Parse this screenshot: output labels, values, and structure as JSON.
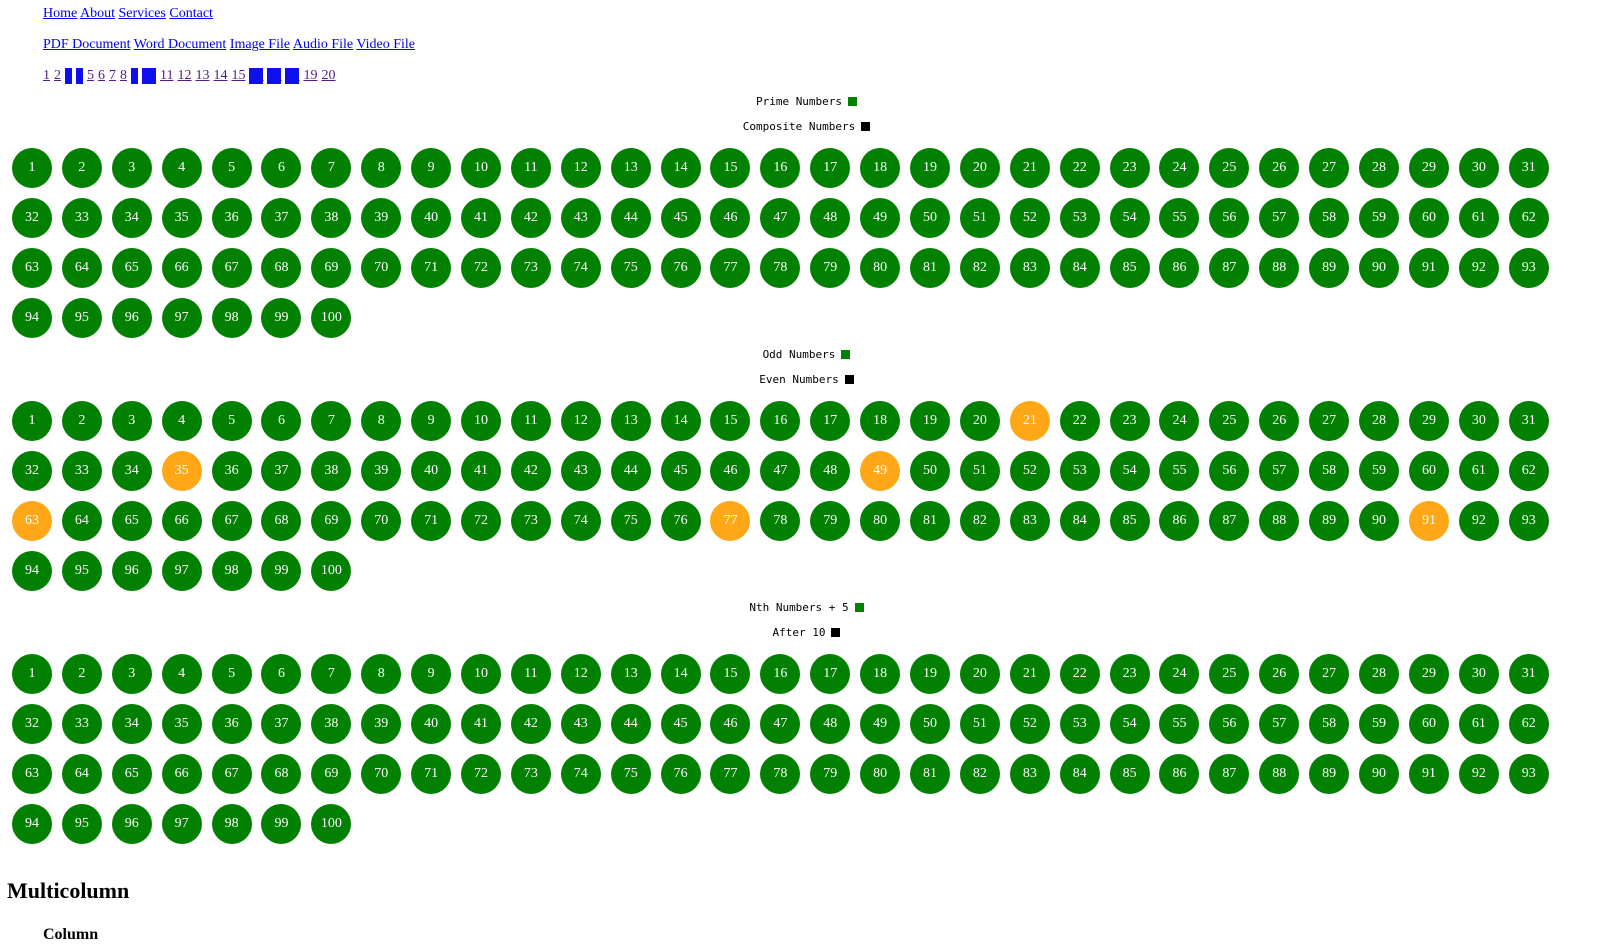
{
  "nav": {
    "main_links": [
      "Home",
      "About",
      "Services",
      "Contact"
    ],
    "file_links": [
      "PDF Document",
      "Word Document",
      "Image File",
      "Audio File",
      "Video File"
    ],
    "pages": [
      {
        "label": "1",
        "highlighted": false
      },
      {
        "label": "2",
        "highlighted": false
      },
      {
        "label": "3",
        "highlighted": true
      },
      {
        "label": "4",
        "highlighted": true
      },
      {
        "label": "5",
        "highlighted": false
      },
      {
        "label": "6",
        "highlighted": false
      },
      {
        "label": "7",
        "highlighted": false
      },
      {
        "label": "8",
        "highlighted": false
      },
      {
        "label": "9",
        "highlighted": true
      },
      {
        "label": "10",
        "highlighted": true
      },
      {
        "label": "11",
        "highlighted": false
      },
      {
        "label": "12",
        "highlighted": false
      },
      {
        "label": "13",
        "highlighted": false
      },
      {
        "label": "14",
        "highlighted": false
      },
      {
        "label": "15",
        "highlighted": false
      },
      {
        "label": "16",
        "highlighted": true
      },
      {
        "label": "17",
        "highlighted": true
      },
      {
        "label": "18",
        "highlighted": true
      },
      {
        "label": "19",
        "highlighted": false
      },
      {
        "label": "20",
        "highlighted": false
      }
    ]
  },
  "colors": {
    "ball_default": "#018001",
    "ball_highlight": "#ffa716",
    "legend_green": "#018001",
    "legend_black": "#000000"
  },
  "sections": [
    {
      "legend_primary": "Prime Numbers",
      "legend_secondary": "Composite Numbers",
      "count": 100,
      "highlighted": []
    },
    {
      "legend_primary": "Odd Numbers",
      "legend_secondary": "Even Numbers",
      "count": 100,
      "highlighted": [
        21,
        35,
        49,
        63,
        77,
        91
      ]
    },
    {
      "legend_primary": "Nth Numbers + 5",
      "legend_secondary": "After 10",
      "count": 100,
      "highlighted": []
    }
  ],
  "multicolumn": {
    "heading": "Multicolumn",
    "column_heading": "Column"
  }
}
